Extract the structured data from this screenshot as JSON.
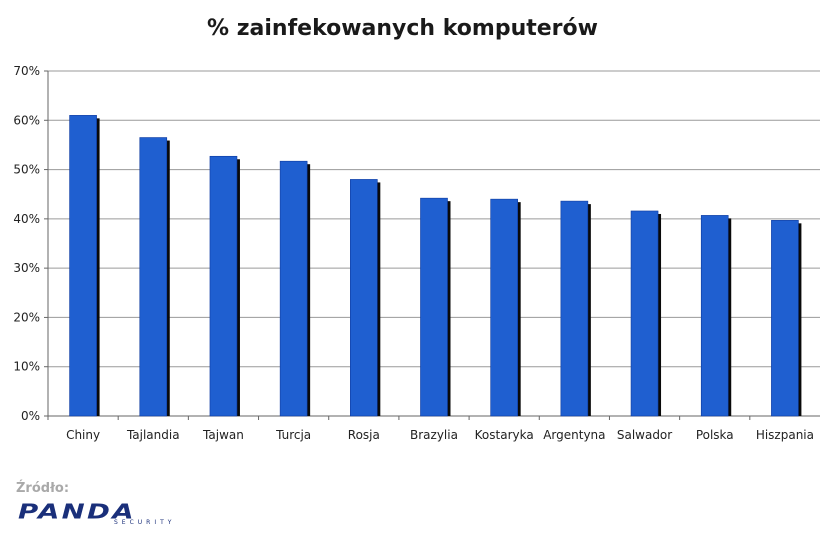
{
  "chart_data": {
    "type": "bar",
    "title": "% zainfekowanych komputerów",
    "categories": [
      "Chiny",
      "Tajlandia",
      "Tajwan",
      "Turcja",
      "Rosja",
      "Brazylia",
      "Kostaryka",
      "Argentyna",
      "Salwador",
      "Polska",
      "Hiszpania"
    ],
    "values": [
      61,
      56.5,
      52.7,
      51.7,
      48,
      44.2,
      44,
      43.6,
      41.6,
      40.7,
      39.7
    ],
    "ylim": [
      0,
      70
    ],
    "yticks": [
      "0%",
      "10%",
      "20%",
      "30%",
      "40%",
      "50%",
      "60%",
      "70%"
    ],
    "ytick_values": [
      0,
      10,
      20,
      30,
      40,
      50,
      60,
      70
    ],
    "grid": true,
    "bar_color": "#1f5fd0",
    "xlabel": "",
    "ylabel": ""
  },
  "source": {
    "label": "Źródło:",
    "logo_text": "PANDA",
    "logo_subtext": "SECURITY"
  }
}
